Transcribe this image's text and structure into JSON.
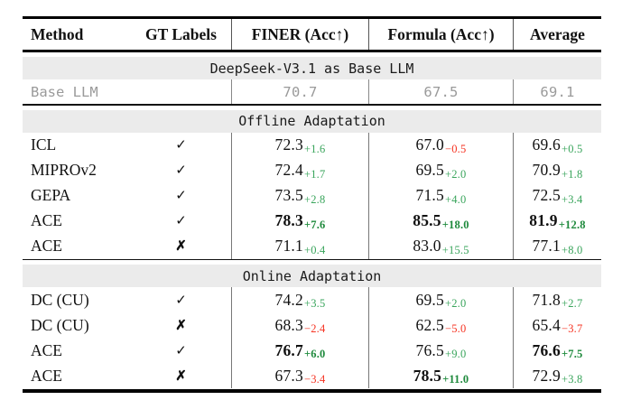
{
  "title": "Adaptation results table",
  "glyphs": {
    "check": "✓",
    "cross": "✗"
  },
  "colors": {
    "delta_positive": "#3aa55c",
    "delta_positive_bold": "#1f8a3d",
    "delta_negative": "#f63322",
    "band_background": "#ebebeb",
    "muted_text": "#9a9a9a"
  },
  "header": {
    "columns": [
      "Method",
      "GT Labels",
      "FINER (Acc↑)",
      "Formula (Acc↑)",
      "Average"
    ]
  },
  "sections": [
    {
      "band": "DeepSeek-V3.1 as Base LLM",
      "rows": [
        {
          "method": "Base LLM",
          "gt": "",
          "muted": true,
          "cells": [
            {
              "value": "70.7"
            },
            {
              "value": "67.5"
            },
            {
              "value": "69.1"
            }
          ]
        }
      ]
    },
    {
      "band": "Offline Adaptation",
      "rows": [
        {
          "method": "ICL",
          "gt": "check",
          "cells": [
            {
              "value": "72.3",
              "delta": "+1.6"
            },
            {
              "value": "67.0",
              "delta": "−0.5"
            },
            {
              "value": "69.6",
              "delta": "+0.5"
            }
          ]
        },
        {
          "method": "MIPROv2",
          "gt": "check",
          "cells": [
            {
              "value": "72.4",
              "delta": "+1.7"
            },
            {
              "value": "69.5",
              "delta": "+2.0"
            },
            {
              "value": "70.9",
              "delta": "+1.8"
            }
          ]
        },
        {
          "method": "GEPA",
          "gt": "check",
          "cells": [
            {
              "value": "73.5",
              "delta": "+2.8"
            },
            {
              "value": "71.5",
              "delta": "+4.0"
            },
            {
              "value": "72.5",
              "delta": "+3.4"
            }
          ]
        },
        {
          "method": "ACE",
          "gt": "check",
          "cells": [
            {
              "value": "78.3",
              "delta": "+7.6",
              "bold": true
            },
            {
              "value": "85.5",
              "delta": "+18.0",
              "bold": true
            },
            {
              "value": "81.9",
              "delta": "+12.8",
              "bold": true
            }
          ]
        },
        {
          "method": "ACE",
          "gt": "cross",
          "cells": [
            {
              "value": "71.1",
              "delta": "+0.4"
            },
            {
              "value": "83.0",
              "delta": "+15.5"
            },
            {
              "value": "77.1",
              "delta": "+8.0"
            }
          ]
        }
      ]
    },
    {
      "band": "Online Adaptation",
      "rows": [
        {
          "method": "DC (CU)",
          "gt": "check",
          "cells": [
            {
              "value": "74.2",
              "delta": "+3.5"
            },
            {
              "value": "69.5",
              "delta": "+2.0"
            },
            {
              "value": "71.8",
              "delta": "+2.7"
            }
          ]
        },
        {
          "method": "DC (CU)",
          "gt": "cross",
          "cells": [
            {
              "value": "68.3",
              "delta": "−2.4"
            },
            {
              "value": "62.5",
              "delta": "−5.0"
            },
            {
              "value": "65.4",
              "delta": "−3.7"
            }
          ]
        },
        {
          "method": "ACE",
          "gt": "check",
          "cells": [
            {
              "value": "76.7",
              "delta": "+6.0",
              "bold": true
            },
            {
              "value": "76.5",
              "delta": "+9.0"
            },
            {
              "value": "76.6",
              "delta": "+7.5",
              "bold": true
            }
          ]
        },
        {
          "method": "ACE",
          "gt": "cross",
          "cells": [
            {
              "value": "67.3",
              "delta": "−3.4"
            },
            {
              "value": "78.5",
              "delta": "+11.0",
              "bold": true
            },
            {
              "value": "72.9",
              "delta": "+3.8"
            }
          ]
        }
      ]
    }
  ]
}
